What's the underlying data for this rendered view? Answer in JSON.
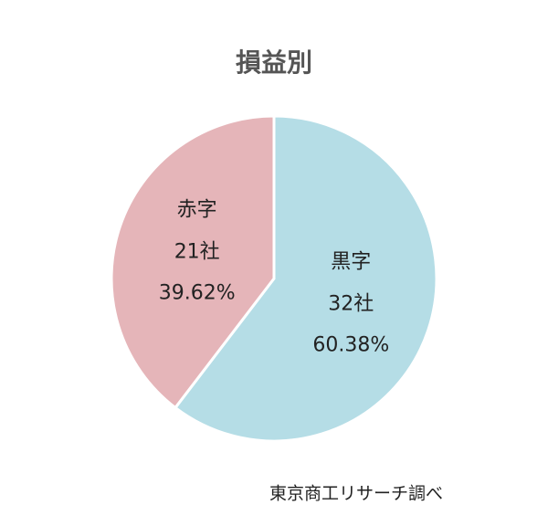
{
  "chart_data": {
    "type": "pie",
    "title": "損益別",
    "categories": [
      "黒字",
      "赤字"
    ],
    "values": [
      60.38,
      39.62
    ],
    "value_labels": [
      "60.38%",
      "39.62%"
    ],
    "counts": [
      32,
      21
    ],
    "count_labels": [
      "32社",
      "21社"
    ],
    "colors": [
      "#b5dde6",
      "#e5b5b9"
    ],
    "source": "東京商工リサーチ調べ"
  }
}
